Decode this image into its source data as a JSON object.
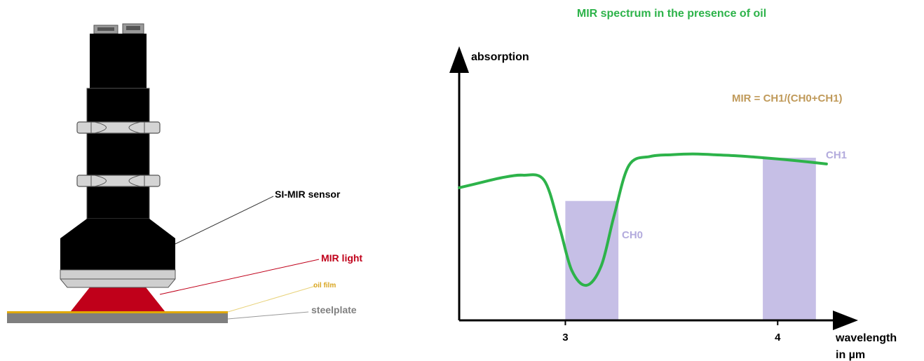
{
  "sensor_diagram": {
    "labels": {
      "sensor": "SI-MIR sensor",
      "light": "MIR light",
      "film": "oil film",
      "plate": "steelplate"
    },
    "colors": {
      "sensor_body": "#000000",
      "nut": "#cfcfcf",
      "light": "#c0001a",
      "film": "#e0a800",
      "plate": "#7f7f7f",
      "light_label": "#c0001a",
      "film_label": "#d9a520",
      "plate_label": "#808080"
    }
  },
  "chart_data": {
    "type": "line",
    "title": "MIR spectrum in the presence of oil",
    "ylabel": "absorption",
    "xlabel": "wavelength\nin µm",
    "xlabel_lines": [
      "wavelength",
      "in µm"
    ],
    "x_ticks": [
      "3",
      "4"
    ],
    "formula": "MIR = CH1/(CH0+CH1)",
    "channels": [
      {
        "name": "CH0",
        "x_range": [
          3.0,
          3.25
        ]
      },
      {
        "name": "CH1",
        "x_range": [
          3.93,
          4.18
        ]
      }
    ],
    "series": [
      {
        "x": [
          2.5,
          2.6,
          2.7,
          2.8,
          2.9,
          2.97,
          3.03,
          3.1,
          3.17,
          3.23,
          3.3,
          3.4,
          3.5,
          3.6,
          3.7,
          3.8,
          3.9,
          4.0,
          4.1,
          4.23
        ],
        "y": [
          0.53,
          0.55,
          0.57,
          0.58,
          0.56,
          0.38,
          0.2,
          0.14,
          0.22,
          0.42,
          0.62,
          0.655,
          0.662,
          0.665,
          0.662,
          0.658,
          0.652,
          0.645,
          0.637,
          0.625
        ]
      }
    ],
    "xlim": [
      2.5,
      4.25
    ],
    "ylim": [
      0,
      1
    ],
    "colors": {
      "line": "#2db34a",
      "channel_band": "#c6bfe6",
      "channel_label": "#b3abdd",
      "formula": "#c09a5a",
      "title": "#2db34a",
      "axis": "#000000"
    },
    "grid": false
  }
}
